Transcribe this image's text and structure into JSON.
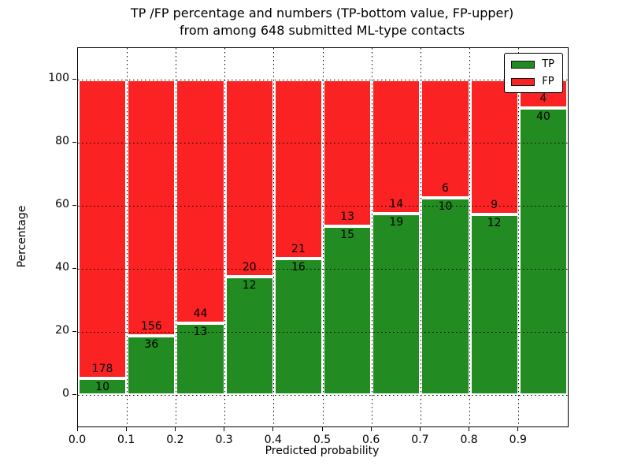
{
  "chart_data": {
    "type": "bar",
    "stacked": true,
    "values_are": "percent_of_bin_total",
    "title_line1": "TP /FP percentage and numbers (TP-bottom value, FP-upper)",
    "title_line2": "from among 648 submitted ML-type contacts",
    "title": "TP /FP percentage and numbers (TP-bottom value, FP-upper)\nfrom among 648 submitted ML-type contacts",
    "xlabel": "Predicted probability",
    "ylabel": "Percentage",
    "total_contacts": 648,
    "xlim": [
      0.0,
      1.0
    ],
    "ylim": [
      -10,
      110
    ],
    "bin_width": 0.1,
    "bin_starts": [
      0.0,
      0.1,
      0.2,
      0.3,
      0.4,
      0.5,
      0.6,
      0.7,
      0.8,
      0.9
    ],
    "x_ticks": [
      0.0,
      0.1,
      0.2,
      0.3,
      0.4,
      0.5,
      0.6,
      0.7,
      0.8,
      0.9
    ],
    "x_tick_labels": [
      "0.0",
      "0.1",
      "0.2",
      "0.3",
      "0.4",
      "0.5",
      "0.6",
      "0.7",
      "0.8",
      "0.9"
    ],
    "y_ticks": [
      0,
      20,
      40,
      60,
      80,
      100
    ],
    "y_tick_labels": [
      "0",
      "20",
      "40",
      "60",
      "80",
      "100"
    ],
    "grid": true,
    "series": [
      {
        "name": "TP",
        "color": "#228b22",
        "counts": [
          10,
          36,
          13,
          12,
          16,
          15,
          19,
          10,
          12,
          40
        ]
      },
      {
        "name": "FP",
        "color": "#fa2222",
        "counts": [
          178,
          156,
          44,
          20,
          21,
          13,
          14,
          6,
          9,
          4
        ]
      }
    ],
    "legend": {
      "position": "upper right",
      "entries": [
        "TP",
        "FP"
      ]
    }
  }
}
